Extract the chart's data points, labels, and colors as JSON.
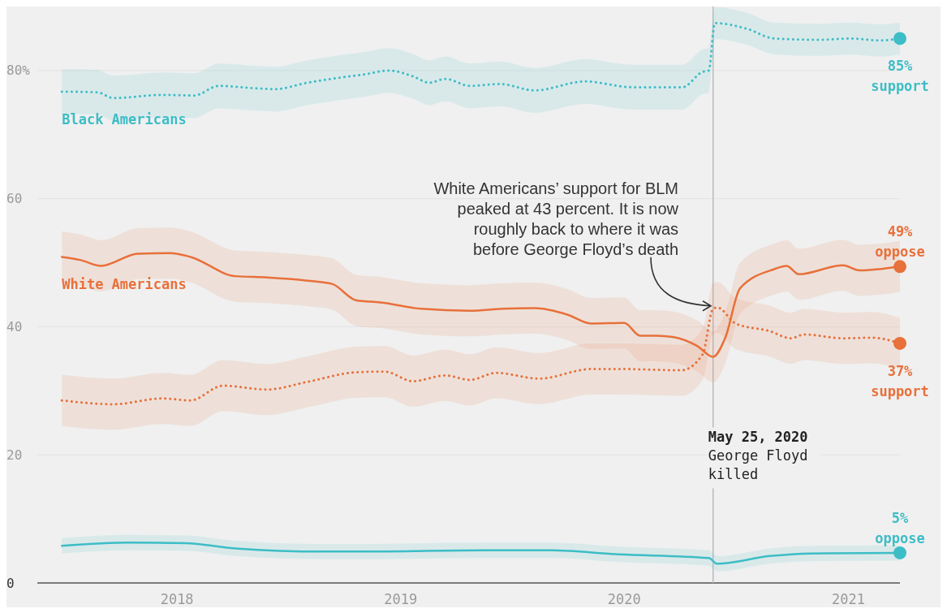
{
  "chart_data": {
    "type": "line",
    "xlim": [
      "2017-05-18",
      "2021-03-26"
    ],
    "xticks": [
      {
        "value": "2018-01-01",
        "label": "2018"
      },
      {
        "value": "2019-01-01",
        "label": "2019"
      },
      {
        "value": "2020-01-01",
        "label": "2020"
      },
      {
        "value": "2021-01-01",
        "label": "2021"
      }
    ],
    "ylim": [
      0,
      90
    ],
    "yticks": [
      0,
      20,
      40,
      60,
      {
        "value": 80,
        "label": "80%"
      }
    ],
    "grid": "y",
    "series": [
      {
        "name": "Black Americans",
        "color": "#3dbdc6",
        "line_style": "dotted",
        "x": [
          "2017-06-27",
          "2017-08-24",
          "2017-09-19",
          "2017-12-08",
          "2018-01-29",
          "2018-03-10",
          "2018-05-15",
          "2018-06-10",
          "2018-08-02",
          "2018-09-24",
          "2018-11-03",
          "2018-12-13",
          "2019-01-21",
          "2019-02-17",
          "2019-03-15",
          "2019-04-24",
          "2019-06-12",
          "2019-08-08",
          "2019-10-29",
          "2020-01-14",
          "2020-04-05",
          "2020-05-08",
          "2020-05-18",
          "2020-05-28",
          "2020-07-20",
          "2020-09-02",
          "2020-11-13",
          "2021-01-05",
          "2021-02-21",
          "2021-03-26"
        ],
        "values": [
          76.7,
          76.6,
          75.7,
          76.2,
          76.1,
          77.6,
          77.2,
          77.1,
          78.1,
          78.9,
          79.4,
          80.0,
          79.1,
          78.1,
          78.7,
          77.6,
          77.9,
          76.9,
          78.3,
          77.4,
          77.4,
          79.8,
          80.0,
          87.4,
          86.5,
          85.0,
          84.8,
          85.0,
          84.7,
          85.0
        ],
        "lower": [
          73.2,
          73.1,
          72.2,
          72.7,
          72.6,
          74.1,
          73.7,
          73.6,
          74.6,
          75.4,
          75.9,
          76.5,
          75.6,
          74.6,
          75.2,
          74.1,
          74.4,
          73.4,
          74.8,
          73.9,
          73.9,
          76.3,
          76.5,
          84.9,
          84.0,
          82.5,
          82.3,
          82.5,
          82.2,
          82.5
        ],
        "upper": [
          80.2,
          80.1,
          79.2,
          79.7,
          79.6,
          81.1,
          80.7,
          80.6,
          81.6,
          82.4,
          82.9,
          83.5,
          82.6,
          81.6,
          82.2,
          81.1,
          81.4,
          80.4,
          81.8,
          80.9,
          80.9,
          83.3,
          83.5,
          89.9,
          89.0,
          87.5,
          87.3,
          87.5,
          87.2,
          87.5
        ],
        "value_labels": [
          null,
          null,
          null,
          null,
          null,
          null,
          null,
          null,
          null,
          null,
          null,
          null,
          null,
          null,
          null,
          null,
          null,
          null,
          null,
          null,
          null,
          null,
          null,
          null,
          null,
          null,
          null,
          null,
          null,
          "85% support"
        ]
      },
      {
        "color": "#3dbdc6",
        "line_style": "solid",
        "x": [
          "2017-06-27",
          "2017-10-16",
          "2018-01-16",
          "2018-04-06",
          "2018-08-29",
          "2018-11-03",
          "2019-05-21",
          "2019-09-04",
          "2019-12-18",
          "2020-05-18",
          "2020-06-01",
          "2020-08-26",
          "2020-11-01",
          "2021-03-26"
        ],
        "values": [
          5.8,
          6.3,
          6.2,
          5.4,
          4.9,
          4.9,
          5.1,
          5.1,
          4.5,
          3.9,
          3.0,
          4.2,
          4.6,
          4.7
        ],
        "lower": [
          4.6,
          5.1,
          5.0,
          4.2,
          3.7,
          3.7,
          3.9,
          3.9,
          3.3,
          2.7,
          1.8,
          3.0,
          3.4,
          3.5
        ],
        "upper": [
          7.0,
          7.5,
          7.4,
          6.6,
          6.1,
          6.1,
          6.3,
          6.3,
          5.7,
          5.1,
          4.2,
          5.4,
          5.8,
          5.9
        ],
        "value_labels": [
          null,
          null,
          null,
          null,
          null,
          null,
          null,
          null,
          null,
          null,
          null,
          null,
          null,
          "5% oppose"
        ]
      },
      {
        "color": "#e8703a",
        "line_style": "dotted",
        "x": [
          "2017-06-27",
          "2017-09-19",
          "2017-12-08",
          "2018-01-23",
          "2018-03-17",
          "2018-05-28",
          "2018-08-02",
          "2018-10-21",
          "2018-12-06",
          "2019-01-21",
          "2019-03-15",
          "2019-04-24",
          "2019-06-06",
          "2019-08-15",
          "2019-11-08",
          "2019-12-25",
          "2020-04-03",
          "2020-05-08",
          "2020-05-25",
          "2020-06-01",
          "2020-07-01",
          "2020-08-26",
          "2020-09-29",
          "2020-10-21",
          "2020-12-23",
          "2021-02-08",
          "2021-03-26"
        ],
        "values": [
          28.5,
          27.9,
          28.8,
          28.5,
          30.8,
          30.2,
          31.4,
          32.9,
          33.0,
          31.5,
          32.4,
          31.7,
          32.8,
          31.9,
          33.4,
          33.4,
          33.2,
          35.7,
          42.8,
          43.0,
          40.5,
          39.3,
          38.2,
          38.8,
          38.2,
          38.3,
          37.4
        ],
        "lower": [
          24.5,
          23.9,
          24.8,
          24.5,
          26.8,
          26.2,
          27.4,
          28.9,
          29.0,
          27.5,
          28.4,
          27.7,
          28.8,
          27.9,
          29.4,
          29.4,
          29.2,
          31.7,
          38.8,
          39.0,
          36.5,
          35.3,
          34.2,
          34.8,
          34.2,
          34.3,
          33.4
        ],
        "upper": [
          32.5,
          31.9,
          32.8,
          32.5,
          34.8,
          34.2,
          35.4,
          36.9,
          37.0,
          35.5,
          36.4,
          35.7,
          36.8,
          35.9,
          37.4,
          37.4,
          37.2,
          39.7,
          46.8,
          47.0,
          44.5,
          43.3,
          42.2,
          42.8,
          42.2,
          42.3,
          41.4
        ],
        "value_labels": [
          null,
          null,
          null,
          null,
          null,
          null,
          null,
          null,
          null,
          null,
          null,
          null,
          null,
          null,
          null,
          null,
          null,
          null,
          null,
          null,
          null,
          null,
          null,
          null,
          null,
          null,
          "37% support"
        ]
      },
      {
        "name": "White Americans",
        "color": "#e8703a",
        "line_style": "solid",
        "x": [
          "2017-06-27",
          "2017-07-28",
          "2017-08-30",
          "2017-10-29",
          "2017-12-21",
          "2018-01-23",
          "2018-04-06",
          "2018-05-28",
          "2018-08-02",
          "2018-09-11",
          "2018-10-21",
          "2018-11-29",
          "2019-02-04",
          "2019-04-24",
          "2019-06-16",
          "2019-08-08",
          "2019-09-30",
          "2019-11-08",
          "2020-01-01",
          "2020-01-27",
          "2020-02-23",
          "2020-03-20",
          "2020-04-29",
          "2020-05-25",
          "2020-06-14",
          "2020-07-08",
          "2020-09-02",
          "2020-09-22",
          "2020-10-12",
          "2020-12-23",
          "2021-01-19",
          "2021-03-26"
        ],
        "values": [
          50.9,
          50.4,
          49.5,
          51.4,
          51.5,
          50.9,
          47.9,
          47.7,
          47.2,
          46.7,
          44.1,
          43.8,
          42.8,
          42.5,
          42.8,
          42.9,
          41.9,
          40.5,
          40.6,
          38.6,
          38.6,
          38.4,
          37.0,
          35.3,
          38.3,
          46.0,
          49.0,
          49.5,
          48.2,
          49.6,
          48.8,
          49.4
        ],
        "lower": [
          46.9,
          46.4,
          45.5,
          47.4,
          47.5,
          46.9,
          43.9,
          43.7,
          43.2,
          42.7,
          40.1,
          39.8,
          38.8,
          38.5,
          38.8,
          38.9,
          37.9,
          36.5,
          36.6,
          34.6,
          34.6,
          34.4,
          33.0,
          31.3,
          34.3,
          42.0,
          45.0,
          45.5,
          44.2,
          45.6,
          44.8,
          45.4
        ],
        "upper": [
          54.9,
          54.4,
          53.5,
          55.4,
          55.5,
          54.9,
          51.9,
          51.7,
          51.2,
          50.7,
          48.1,
          47.8,
          46.8,
          46.5,
          46.8,
          46.9,
          45.9,
          44.5,
          44.6,
          42.6,
          42.6,
          42.4,
          41.0,
          39.3,
          42.3,
          50.0,
          53.0,
          53.5,
          52.2,
          53.6,
          52.8,
          53.4
        ],
        "value_labels": [
          null,
          null,
          null,
          null,
          null,
          null,
          null,
          null,
          null,
          null,
          null,
          null,
          null,
          null,
          null,
          null,
          null,
          null,
          null,
          null,
          null,
          null,
          null,
          null,
          null,
          null,
          null,
          null,
          null,
          null,
          null,
          "49% oppose"
        ]
      }
    ],
    "ref_lines": [
      {
        "axis": "x",
        "value": "2020-05-25",
        "label": "May 25, 2020 George Floyd killed",
        "color": "#bbbbbb"
      }
    ],
    "annotations": [
      {
        "text": "White Americans’ support for BLM peaked at 43 percent. It is now roughly back to where it was before George Floyd’s death",
        "x": "2020-06-01",
        "y": 43
      }
    ]
  }
}
